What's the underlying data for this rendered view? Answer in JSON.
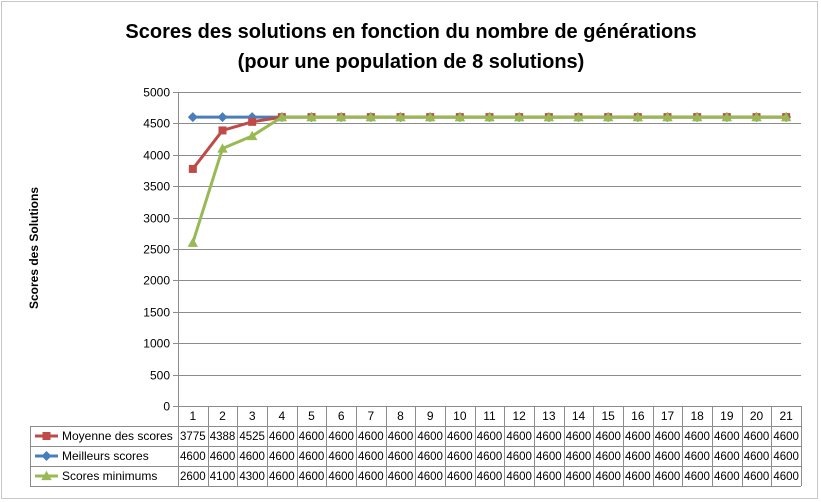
{
  "chart_data": {
    "type": "line",
    "title_lines": [
      "Scores des solutions en fonction du nombre de générations",
      "(pour une population de 8 solutions)"
    ],
    "ylabel": "Scores des Solutions",
    "xlabel": "",
    "x": [
      "1",
      "2",
      "3",
      "4",
      "5",
      "6",
      "7",
      "8",
      "9",
      "10",
      "11",
      "12",
      "13",
      "14",
      "15",
      "16",
      "17",
      "18",
      "19",
      "20",
      "21"
    ],
    "ylim": [
      0,
      5000
    ],
    "yticks": [
      0,
      500,
      1000,
      1500,
      2000,
      2500,
      3000,
      3500,
      4000,
      4500,
      5000
    ],
    "grid": true,
    "legend": "data-table",
    "series": [
      {
        "name": "Moyenne des scores",
        "color": "#be4b48",
        "marker": "square",
        "values": [
          3775,
          4388,
          4525,
          4600,
          4600,
          4600,
          4600,
          4600,
          4600,
          4600,
          4600,
          4600,
          4600,
          4600,
          4600,
          4600,
          4600,
          4600,
          4600,
          4600,
          4600
        ]
      },
      {
        "name": "Meilleurs scores",
        "color": "#4a7ebb",
        "marker": "diamond",
        "values": [
          4600,
          4600,
          4600,
          4600,
          4600,
          4600,
          4600,
          4600,
          4600,
          4600,
          4600,
          4600,
          4600,
          4600,
          4600,
          4600,
          4600,
          4600,
          4600,
          4600,
          4600
        ]
      },
      {
        "name": "Scores minimums",
        "color": "#98b954",
        "marker": "triangle",
        "values": [
          2600,
          4100,
          4300,
          4600,
          4600,
          4600,
          4600,
          4600,
          4600,
          4600,
          4600,
          4600,
          4600,
          4600,
          4600,
          4600,
          4600,
          4600,
          4600,
          4600,
          4600
        ]
      }
    ]
  }
}
